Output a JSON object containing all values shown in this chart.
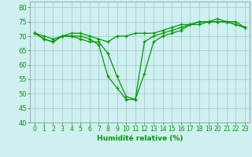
{
  "xlabel": "Humidité relative (%)",
  "background_color": "#cef0f0",
  "grid_color": "#aacccc",
  "line_color": "#009900",
  "xlim": [
    -0.5,
    23.5
  ],
  "ylim": [
    40,
    82
  ],
  "yticks": [
    40,
    45,
    50,
    55,
    60,
    65,
    70,
    75,
    80
  ],
  "xticks": [
    0,
    1,
    2,
    3,
    4,
    5,
    6,
    7,
    8,
    9,
    10,
    11,
    12,
    13,
    14,
    15,
    16,
    17,
    18,
    19,
    20,
    21,
    22,
    23
  ],
  "series": [
    [
      71,
      69,
      68,
      70,
      70,
      69,
      68,
      68,
      64,
      56,
      49,
      48,
      57,
      68,
      70,
      71,
      72,
      74,
      74,
      75,
      75,
      75,
      74,
      73
    ],
    [
      71,
      69,
      68,
      70,
      70,
      70,
      69,
      67,
      56,
      52,
      48,
      48,
      68,
      70,
      71,
      72,
      73,
      74,
      75,
      75,
      76,
      75,
      75,
      73
    ],
    [
      71,
      70,
      69,
      70,
      71,
      71,
      70,
      69,
      68,
      70,
      70,
      71,
      71,
      71,
      72,
      73,
      74,
      74,
      75,
      75,
      75,
      75,
      74,
      73
    ]
  ]
}
